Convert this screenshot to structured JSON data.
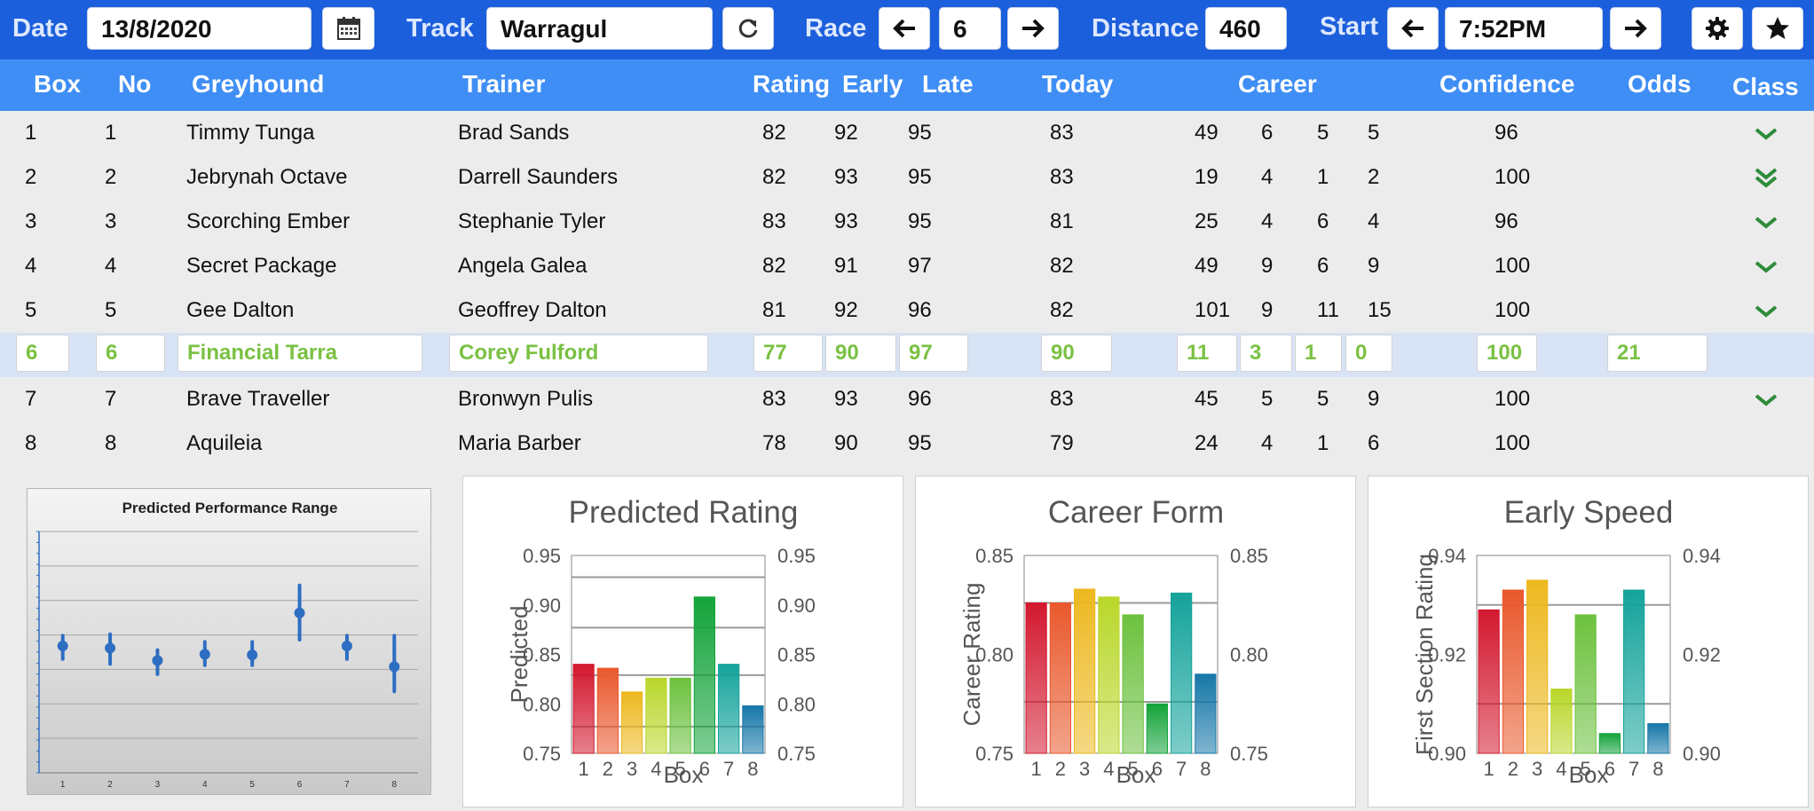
{
  "toolbar": {
    "date_label": "Date",
    "date_value": "13/8/2020",
    "track_label": "Track",
    "track_value": "Warragul",
    "race_label": "Race",
    "race_value": "6",
    "distance_label": "Distance",
    "distance_value": "460",
    "start_label": "Start",
    "start_value": "7:52PM",
    "icons": [
      "calendar-icon",
      "refresh-icon",
      "arrow-left-icon",
      "arrow-right-icon",
      "gear-icon",
      "star-icon"
    ]
  },
  "table": {
    "headers": {
      "box": "Box",
      "no": "No",
      "greyhound": "Greyhound",
      "trainer": "Trainer",
      "rating": "Rating",
      "early": "Early",
      "late": "Late",
      "today": "Today",
      "career": "Career",
      "confidence": "Confidence",
      "odds": "Odds",
      "class": "Class"
    },
    "rows": [
      {
        "box": "1",
        "no": "1",
        "greyhound": "Timmy Tunga",
        "trainer": "Brad Sands",
        "rating": "82",
        "early": "92",
        "late": "95",
        "today": "83",
        "c1": "49",
        "c2": "6",
        "c3": "5",
        "c4": "5",
        "confidence": "96",
        "odds": "",
        "class": "single"
      },
      {
        "box": "2",
        "no": "2",
        "greyhound": "Jebrynah Octave",
        "trainer": "Darrell Saunders",
        "rating": "82",
        "early": "93",
        "late": "95",
        "today": "83",
        "c1": "19",
        "c2": "4",
        "c3": "1",
        "c4": "2",
        "confidence": "100",
        "odds": "",
        "class": "double"
      },
      {
        "box": "3",
        "no": "3",
        "greyhound": "Scorching Ember",
        "trainer": "Stephanie Tyler",
        "rating": "83",
        "early": "93",
        "late": "95",
        "today": "81",
        "c1": "25",
        "c2": "4",
        "c3": "6",
        "c4": "4",
        "confidence": "96",
        "odds": "",
        "class": "single"
      },
      {
        "box": "4",
        "no": "4",
        "greyhound": "Secret Package",
        "trainer": "Angela Galea",
        "rating": "82",
        "early": "91",
        "late": "97",
        "today": "82",
        "c1": "49",
        "c2": "9",
        "c3": "6",
        "c4": "9",
        "confidence": "100",
        "odds": "",
        "class": "single"
      },
      {
        "box": "5",
        "no": "5",
        "greyhound": "Gee Dalton",
        "trainer": "Geoffrey Dalton",
        "rating": "81",
        "early": "92",
        "late": "96",
        "today": "82",
        "c1": "101",
        "c2": "9",
        "c3": "11",
        "c4": "15",
        "confidence": "100",
        "odds": "",
        "class": "single"
      },
      {
        "box": "6",
        "no": "6",
        "greyhound": "Financial Tarra",
        "trainer": "Corey Fulford",
        "rating": "77",
        "early": "90",
        "late": "97",
        "today": "90",
        "c1": "11",
        "c2": "3",
        "c3": "1",
        "c4": "0",
        "confidence": "100",
        "odds": "21",
        "class": "none",
        "selected": true
      },
      {
        "box": "7",
        "no": "7",
        "greyhound": "Brave Traveller",
        "trainer": "Bronwyn Pulis",
        "rating": "83",
        "early": "93",
        "late": "96",
        "today": "83",
        "c1": "45",
        "c2": "5",
        "c3": "5",
        "c4": "9",
        "confidence": "100",
        "odds": "",
        "class": "single"
      },
      {
        "box": "8",
        "no": "8",
        "greyhound": "Aquileia",
        "trainer": "Maria Barber",
        "rating": "78",
        "early": "90",
        "late": "95",
        "today": "79",
        "c1": "24",
        "c2": "4",
        "c3": "1",
        "c4": "6",
        "confidence": "100",
        "odds": "",
        "class": "none"
      }
    ]
  },
  "colors": {
    "toolbar_bg": "#1c5fdc",
    "header_bg": "#3f8ef5",
    "selected_row_bg": "#d8e4f6",
    "selected_text": "#7ac143",
    "check_green": "#2e8b3a"
  },
  "chart_data": [
    {
      "type": "scatter",
      "title": "Predicted Performance Range",
      "categories": [
        "1",
        "2",
        "3",
        "4",
        "5",
        "6",
        "7",
        "8"
      ],
      "values": [
        0.834,
        0.831,
        0.813,
        0.822,
        0.821,
        0.882,
        0.834,
        0.804
      ],
      "low": [
        0.815,
        0.808,
        0.793,
        0.806,
        0.806,
        0.843,
        0.815,
        0.768
      ],
      "high": [
        0.849,
        0.851,
        0.828,
        0.84,
        0.84,
        0.922,
        0.849,
        0.849
      ],
      "ylim": [
        0.65,
        1.0
      ],
      "grid": true
    },
    {
      "type": "bar",
      "title": "Predicted Rating",
      "xlabel": "Box",
      "ylabel": "Predicted",
      "categories": [
        "1",
        "2",
        "3",
        "4",
        "5",
        "6",
        "7",
        "8"
      ],
      "values": [
        0.84,
        0.836,
        0.812,
        0.826,
        0.826,
        0.908,
        0.84,
        0.798
      ],
      "ylim": [
        0.75,
        0.95
      ],
      "ticks": [
        "0.75",
        "0.80",
        "0.85",
        "0.90",
        "0.95"
      ],
      "reference_lines": [
        0.928,
        0.877,
        0.829,
        0.777
      ]
    },
    {
      "type": "bar",
      "title": "Career Form",
      "xlabel": "Box",
      "ylabel": "Career Rating",
      "categories": [
        "1",
        "2",
        "3",
        "4",
        "5",
        "6",
        "7",
        "8"
      ],
      "values": [
        0.826,
        0.826,
        0.833,
        0.829,
        0.82,
        0.775,
        0.831,
        0.79
      ],
      "ylim": [
        0.75,
        0.85
      ],
      "ticks": [
        "0.75",
        "0.80",
        "0.85"
      ],
      "reference_lines": [
        0.826,
        0.776
      ]
    },
    {
      "type": "bar",
      "title": "Early Speed",
      "xlabel": "Box",
      "ylabel": "First Section Rating",
      "categories": [
        "1",
        "2",
        "3",
        "4",
        "5",
        "6",
        "7",
        "8"
      ],
      "values": [
        0.929,
        0.933,
        0.935,
        0.913,
        0.928,
        0.904,
        0.933,
        0.906
      ],
      "ylim": [
        0.9,
        0.94
      ],
      "ticks": [
        "0.90",
        "0.92",
        "0.94"
      ],
      "reference_lines": [
        0.93,
        0.91
      ]
    }
  ]
}
